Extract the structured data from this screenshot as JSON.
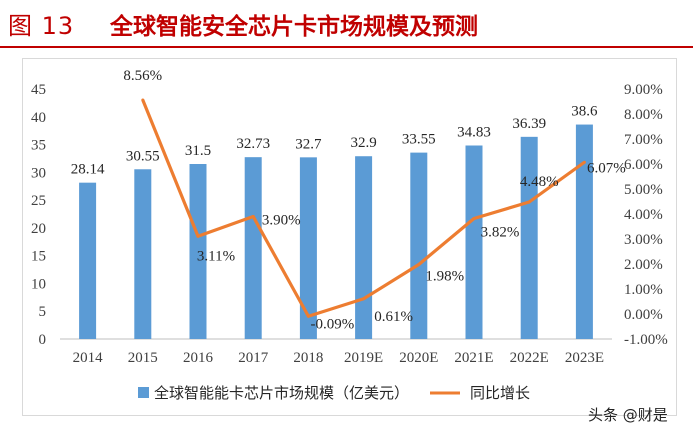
{
  "header": {
    "figure_no": "图 13",
    "title": "全球智能安全芯片卡市场规模及预测"
  },
  "watermark": "头条 @财是",
  "colors": {
    "accent": "#c00000",
    "bar": "#5b9bd5",
    "line": "#ed7d31"
  },
  "chart_data": {
    "type": "bar",
    "categories": [
      "2014",
      "2015",
      "2016",
      "2017",
      "2018",
      "2019E",
      "2020E",
      "2021E",
      "2022E",
      "2023E"
    ],
    "series": [
      {
        "name": "全球智能能卡芯片市场规模（亿美元）",
        "type": "bar",
        "axis": "left",
        "values": [
          28.14,
          30.55,
          31.5,
          32.73,
          32.7,
          32.9,
          33.55,
          34.83,
          36.39,
          38.6
        ],
        "labels": [
          "28.14",
          "30.55",
          "31.5",
          "32.73",
          "32.7",
          "32.9",
          "33.55",
          "34.83",
          "36.39",
          "38.6"
        ]
      },
      {
        "name": "同比增长",
        "type": "line",
        "axis": "right",
        "values": [
          null,
          8.56,
          3.11,
          3.9,
          -0.09,
          0.61,
          1.98,
          3.82,
          4.48,
          6.07
        ],
        "labels": [
          "",
          "8.56%",
          "3.11%",
          "3.90%",
          "-0.09%",
          "0.61%",
          "1.98%",
          "3.82%",
          "4.48%",
          "6.07%"
        ]
      }
    ],
    "y_left": {
      "ylim": [
        0,
        45
      ],
      "ticks": [
        "0",
        "5",
        "10",
        "15",
        "20",
        "25",
        "30",
        "35",
        "40",
        "45"
      ]
    },
    "y_right": {
      "ylim": [
        -1,
        9
      ],
      "ticks": [
        "-1.00%",
        "0.00%",
        "1.00%",
        "2.00%",
        "3.00%",
        "4.00%",
        "5.00%",
        "6.00%",
        "7.00%",
        "8.00%",
        "9.00%"
      ]
    },
    "legend_position": "bottom",
    "grid": false
  }
}
